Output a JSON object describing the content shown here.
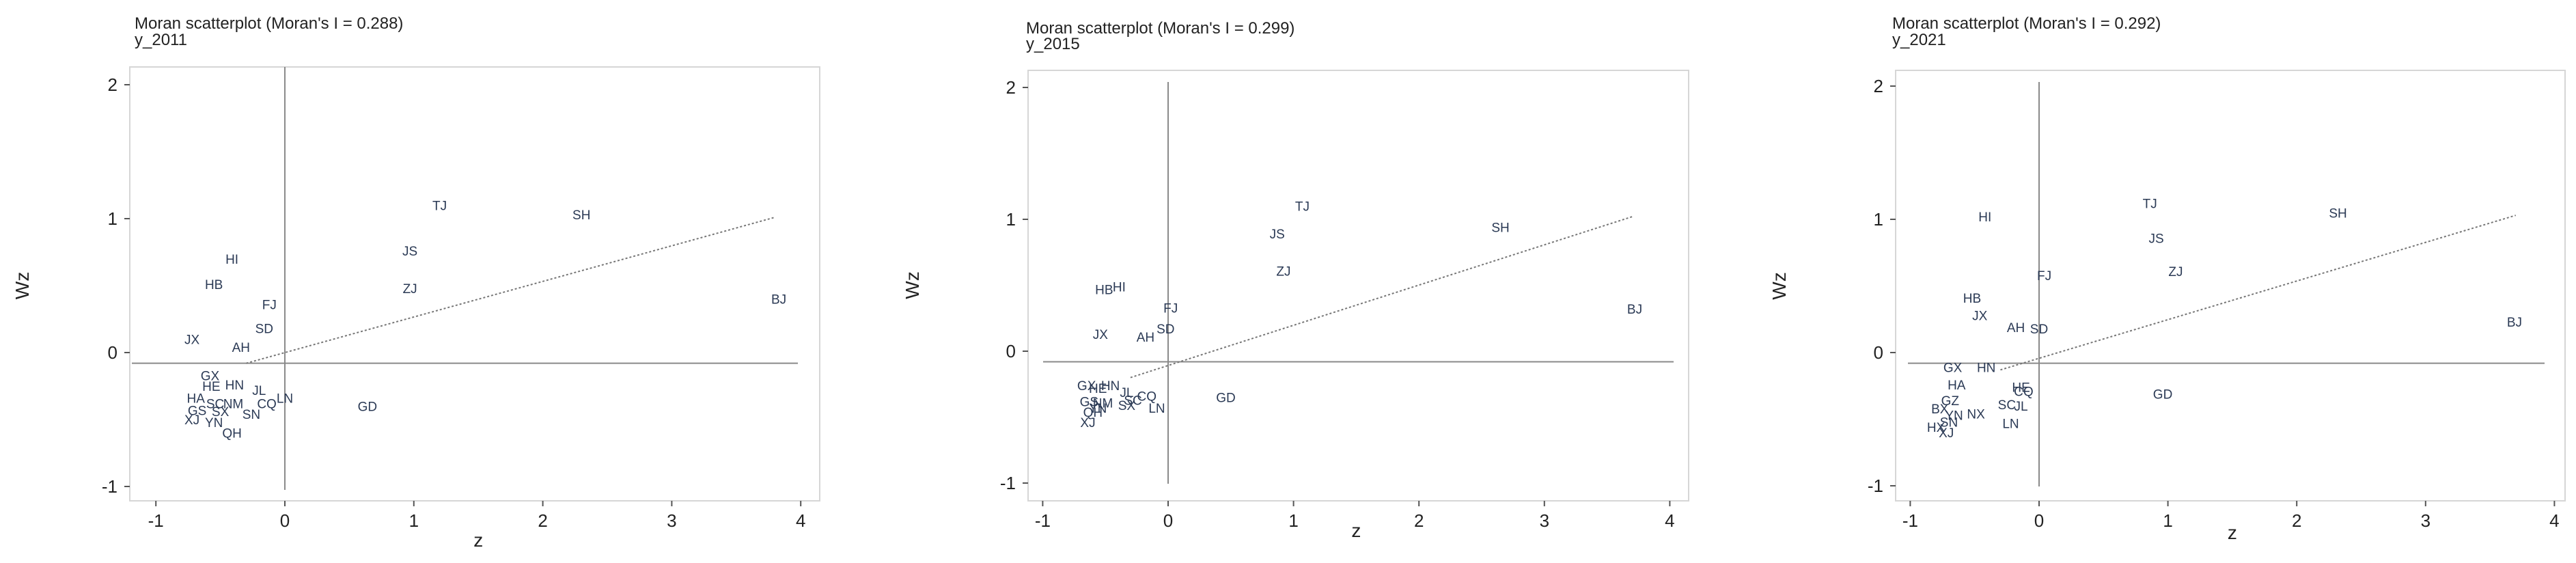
{
  "chart_data": [
    {
      "type": "scatter",
      "title": "Moran scatterplot (Moran's I = 0.288)",
      "subtitle": "y_2011",
      "xlabel": "z",
      "ylabel": "Wz",
      "xlim": [
        -1,
        4
      ],
      "ylim": [
        -1,
        2
      ],
      "xticks": [
        "-1",
        "0",
        "1",
        "2",
        "3",
        "4"
      ],
      "yticks": [
        "-1",
        "0",
        "1",
        "2"
      ],
      "grid": false,
      "fit_line": {
        "x": [
          -1,
          3.8
        ],
        "y": [
          -0.08,
          1.01
        ]
      },
      "points": [
        {
          "label": "TJ",
          "x": 1.2,
          "y": 1.1
        },
        {
          "label": "SH",
          "x": 2.3,
          "y": 1.03
        },
        {
          "label": "JS",
          "x": 0.97,
          "y": 0.76
        },
        {
          "label": "HI",
          "x": -0.41,
          "y": 0.7
        },
        {
          "label": "HB",
          "x": -0.55,
          "y": 0.51
        },
        {
          "label": "ZJ",
          "x": 0.97,
          "y": 0.48
        },
        {
          "label": "BJ",
          "x": 3.83,
          "y": 0.4
        },
        {
          "label": "FJ",
          "x": -0.12,
          "y": 0.36
        },
        {
          "label": "SD",
          "x": -0.16,
          "y": 0.18
        },
        {
          "label": "JX",
          "x": -0.72,
          "y": 0.1
        },
        {
          "label": "AH",
          "x": -0.34,
          "y": 0.04
        },
        {
          "label": "GX",
          "x": -0.58,
          "y": -0.17
        },
        {
          "label": "HE",
          "x": -0.57,
          "y": -0.25
        },
        {
          "label": "HN",
          "x": -0.39,
          "y": -0.24
        },
        {
          "label": "JL",
          "x": -0.2,
          "y": -0.28
        },
        {
          "label": "HA",
          "x": -0.69,
          "y": -0.34
        },
        {
          "label": "LN",
          "x": 0.0,
          "y": -0.34
        },
        {
          "label": "CQ",
          "x": -0.14,
          "y": -0.38
        },
        {
          "label": "GD",
          "x": 0.64,
          "y": -0.4
        },
        {
          "label": "SC",
          "x": -0.54,
          "y": -0.38
        },
        {
          "label": "NM",
          "x": -0.4,
          "y": -0.38
        },
        {
          "label": "GS",
          "x": -0.68,
          "y": -0.43
        },
        {
          "label": "SX",
          "x": -0.5,
          "y": -0.44
        },
        {
          "label": "SN",
          "x": -0.26,
          "y": -0.46
        },
        {
          "label": "XJ",
          "x": -0.72,
          "y": -0.5
        },
        {
          "label": "YN",
          "x": -0.55,
          "y": -0.52
        },
        {
          "label": "QH",
          "x": -0.41,
          "y": -0.6
        }
      ]
    },
    {
      "type": "scatter",
      "title": "Moran scatterplot (Moran's I = 0.299)",
      "subtitle": "y_2015",
      "xlabel": "z",
      "ylabel": "Wz",
      "xlim": [
        -1,
        4
      ],
      "ylim": [
        -1,
        2
      ],
      "xticks": [
        "-1",
        "0",
        "1",
        "2",
        "3",
        "4"
      ],
      "yticks": [
        "-1",
        "0",
        "1",
        "2"
      ],
      "grid": false,
      "fit_line": {
        "x": [
          -1,
          3.7
        ],
        "y": [
          -0.2,
          1.02
        ]
      },
      "points": [
        {
          "label": "TJ",
          "x": 1.07,
          "y": 1.1
        },
        {
          "label": "SH",
          "x": 2.65,
          "y": 0.94
        },
        {
          "label": "JS",
          "x": 0.87,
          "y": 0.89
        },
        {
          "label": "ZJ",
          "x": 0.92,
          "y": 0.61
        },
        {
          "label": "HI",
          "x": -0.39,
          "y": 0.49
        },
        {
          "label": "HB",
          "x": -0.51,
          "y": 0.47
        },
        {
          "label": "FJ",
          "x": 0.02,
          "y": 0.33
        },
        {
          "label": "BJ",
          "x": 3.72,
          "y": 0.32
        },
        {
          "label": "SD",
          "x": -0.02,
          "y": 0.17
        },
        {
          "label": "JX",
          "x": -0.54,
          "y": 0.13
        },
        {
          "label": "AH",
          "x": -0.18,
          "y": 0.11
        },
        {
          "label": "GX",
          "x": -0.65,
          "y": -0.26
        },
        {
          "label": "HN",
          "x": -0.46,
          "y": -0.26
        },
        {
          "label": "HE",
          "x": -0.56,
          "y": -0.28
        },
        {
          "label": "JL",
          "x": -0.33,
          "y": -0.31
        },
        {
          "label": "CQ",
          "x": -0.17,
          "y": -0.34
        },
        {
          "label": "GD",
          "x": 0.46,
          "y": -0.35
        },
        {
          "label": "SC",
          "x": -0.28,
          "y": -0.37
        },
        {
          "label": "GS",
          "x": -0.63,
          "y": -0.38
        },
        {
          "label": "NM",
          "x": -0.52,
          "y": -0.39
        },
        {
          "label": "SX",
          "x": -0.33,
          "y": -0.41
        },
        {
          "label": "LN",
          "x": -0.09,
          "y": -0.43
        },
        {
          "label": "YN",
          "x": -0.56,
          "y": -0.43
        },
        {
          "label": "QH",
          "x": -0.6,
          "y": -0.46
        },
        {
          "label": "XJ",
          "x": -0.64,
          "y": -0.54
        }
      ]
    },
    {
      "type": "scatter",
      "title": "Moran scatterplot (Moran's I = 0.292)",
      "subtitle": "y_2021",
      "xlabel": "z",
      "ylabel": "Wz",
      "xlim": [
        -1,
        4
      ],
      "ylim": [
        -1,
        2
      ],
      "xticks": [
        "-1",
        "0",
        "1",
        "2",
        "3",
        "4"
      ],
      "yticks": [
        "-1",
        "0",
        "1",
        "2"
      ],
      "grid": false,
      "fit_line": {
        "x": [
          -1,
          3.7
        ],
        "y": [
          -0.13,
          1.03
        ]
      },
      "points": [
        {
          "label": "TJ",
          "x": 0.86,
          "y": 1.12
        },
        {
          "label": "SH",
          "x": 2.32,
          "y": 1.05
        },
        {
          "label": "HI",
          "x": -0.42,
          "y": 1.02
        },
        {
          "label": "JS",
          "x": 0.91,
          "y": 0.86
        },
        {
          "label": "ZJ",
          "x": 1.06,
          "y": 0.61
        },
        {
          "label": "FJ",
          "x": 0.04,
          "y": 0.58
        },
        {
          "label": "HB",
          "x": -0.52,
          "y": 0.41
        },
        {
          "label": "JX",
          "x": -0.46,
          "y": 0.28
        },
        {
          "label": "BJ",
          "x": 3.69,
          "y": 0.23
        },
        {
          "label": "AH",
          "x": -0.18,
          "y": 0.19
        },
        {
          "label": "SD",
          "x": 0.0,
          "y": 0.18
        },
        {
          "label": "GX",
          "x": -0.67,
          "y": -0.11
        },
        {
          "label": "HN",
          "x": -0.41,
          "y": -0.11
        },
        {
          "label": "HA",
          "x": -0.64,
          "y": -0.24
        },
        {
          "label": "HE",
          "x": -0.14,
          "y": -0.26
        },
        {
          "label": "CQ",
          "x": -0.12,
          "y": -0.29
        },
        {
          "label": "GD",
          "x": 0.96,
          "y": -0.31
        },
        {
          "label": "GZ",
          "x": -0.69,
          "y": -0.36
        },
        {
          "label": "SC",
          "x": -0.25,
          "y": -0.39
        },
        {
          "label": "JL",
          "x": -0.14,
          "y": -0.4
        },
        {
          "label": "BX",
          "x": -0.77,
          "y": -0.42
        },
        {
          "label": "NX",
          "x": -0.49,
          "y": -0.46
        },
        {
          "label": "YN",
          "x": -0.66,
          "y": -0.47
        },
        {
          "label": "SN",
          "x": -0.7,
          "y": -0.52
        },
        {
          "label": "LN",
          "x": -0.22,
          "y": -0.53
        },
        {
          "label": "HX",
          "x": -0.8,
          "y": -0.56
        },
        {
          "label": "XJ",
          "x": -0.72,
          "y": -0.6
        }
      ]
    }
  ]
}
